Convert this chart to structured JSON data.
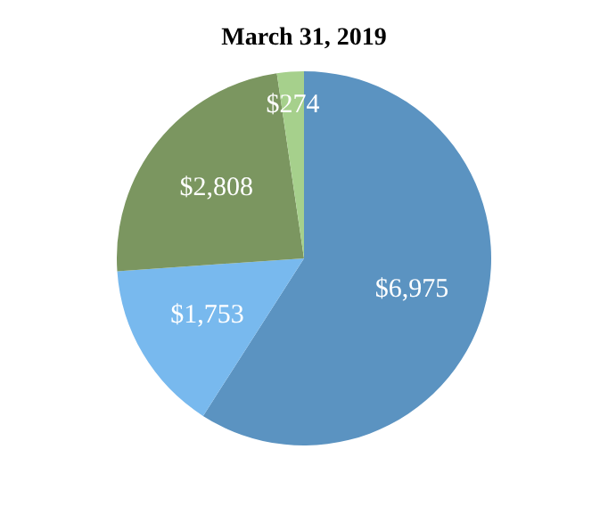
{
  "chart_data": {
    "type": "pie",
    "title": "March 31, 2019",
    "categories": [
      null,
      null,
      null,
      null
    ],
    "values": [
      6975,
      1753,
      2808,
      274
    ],
    "value_labels": [
      "$6,975",
      "$1,753",
      "$2,808",
      "$274"
    ],
    "colors": [
      "#5b93c1",
      "#78b9ee",
      "#7b9660",
      "#a6d08c"
    ]
  }
}
